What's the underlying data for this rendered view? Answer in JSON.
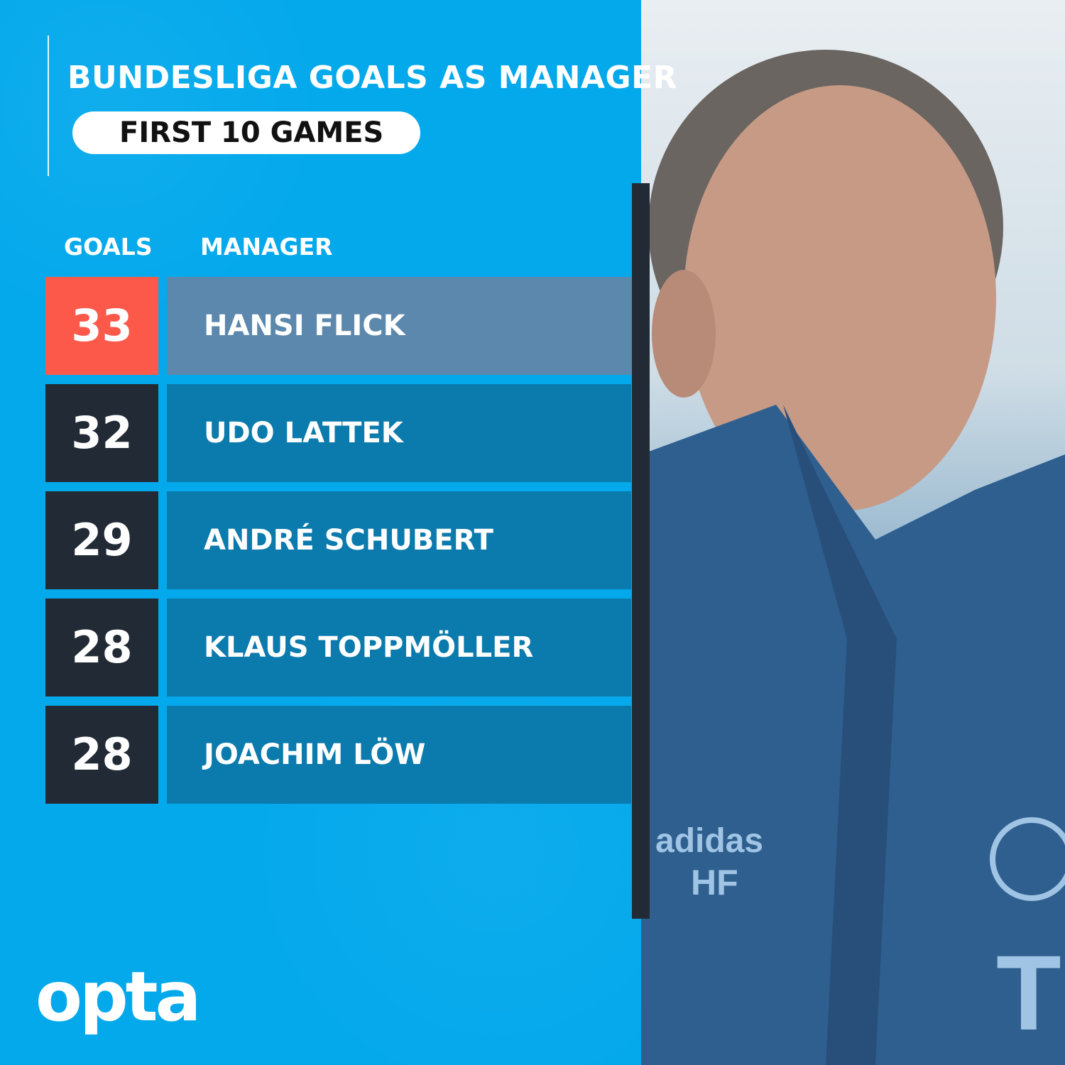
{
  "title": "BUNDESLIGA GOALS AS MANAGER",
  "subtitle": "FIRST 10 GAMES",
  "columns": {
    "goals": "GOALS",
    "manager": "MANAGER"
  },
  "chart_data": {
    "type": "table",
    "title": "BUNDESLIGA GOALS AS MANAGER",
    "subtitle": "FIRST 10 GAMES",
    "columns": [
      "GOALS",
      "MANAGER"
    ],
    "rows": [
      {
        "goals": "33",
        "manager": "HANSI FLICK",
        "highlight": true
      },
      {
        "goals": "32",
        "manager": "UDO LATTEK",
        "highlight": false
      },
      {
        "goals": "29",
        "manager": "ANDRÉ SCHUBERT",
        "highlight": false
      },
      {
        "goals": "28",
        "manager": "KLAUS TOPPMÖLLER",
        "highlight": false
      },
      {
        "goals": "28",
        "manager": "JOACHIM LÖW",
        "highlight": false
      }
    ]
  },
  "colors": {
    "background": "#04a9ec",
    "highlight_goal": "#fd594b",
    "highlight_name": "#5c88ad",
    "goal_box": "#222b35",
    "name_box": "#0b7aad"
  },
  "logo": "opta",
  "photo_jacket_text": "HF"
}
